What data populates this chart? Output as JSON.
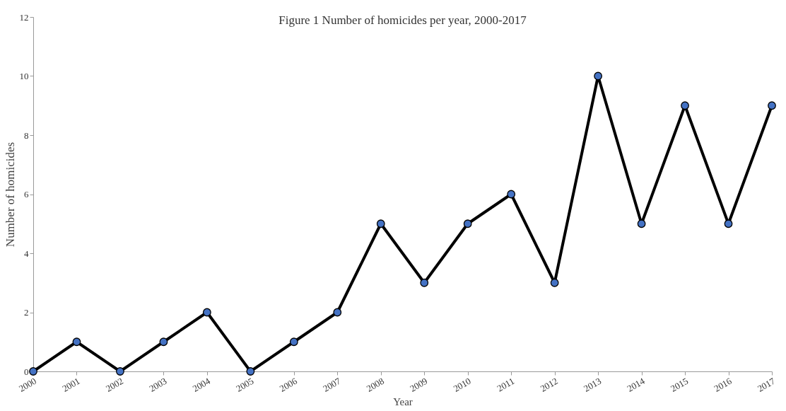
{
  "chart_data": {
    "type": "line",
    "title": "Figure 1 Number of homicides per year, 2000-2017",
    "xlabel": "Year",
    "ylabel": "Number of homicides",
    "categories": [
      "2000",
      "2001",
      "2002",
      "2003",
      "2004",
      "2005",
      "2006",
      "2007",
      "2008",
      "2009",
      "2010",
      "2011",
      "2012",
      "2013",
      "2014",
      "2015",
      "2016",
      "2017"
    ],
    "series": [
      {
        "color": "#4472c4",
        "values": [
          0,
          1,
          0,
          1,
          2,
          0,
          1,
          2,
          5,
          3,
          5,
          6,
          3,
          10,
          5,
          9,
          5,
          9
        ]
      }
    ],
    "ylim": [
      0,
      12
    ],
    "yticks": [
      0,
      2,
      4,
      6,
      8,
      10,
      12
    ],
    "grid": false,
    "marker": "circle",
    "line_style": "solid"
  }
}
